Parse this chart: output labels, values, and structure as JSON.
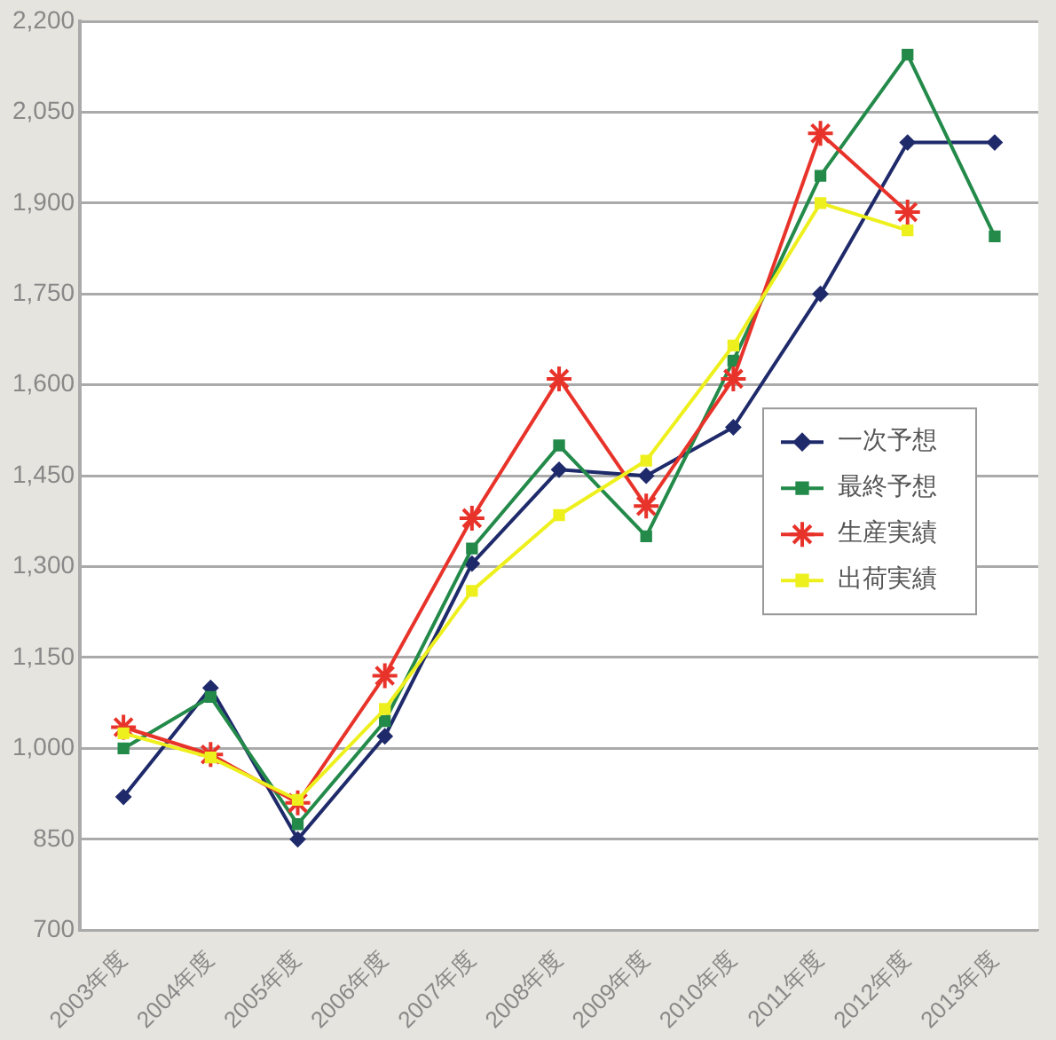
{
  "chart_data": {
    "type": "line",
    "categories": [
      "2003年度",
      "2004年度",
      "2005年度",
      "2006年度",
      "2007年度",
      "2008年度",
      "2009年度",
      "2010年度",
      "2011年度",
      "2012年度",
      "2013年度"
    ],
    "series": [
      {
        "name": "一次予想",
        "color": "#1f2a6b",
        "marker": "diamond",
        "values": [
          920,
          1100,
          850,
          1020,
          1305,
          1460,
          1450,
          1530,
          1750,
          2000,
          2000
        ]
      },
      {
        "name": "最終予想",
        "color": "#238a4a",
        "marker": "square",
        "values": [
          1000,
          1085,
          875,
          1045,
          1330,
          1500,
          1350,
          1640,
          1945,
          2145,
          1845
        ]
      },
      {
        "name": "生産実績",
        "color": "#e8332a",
        "marker": "cross",
        "values": [
          1035,
          990,
          910,
          1120,
          1380,
          1610,
          1400,
          1610,
          2015,
          1885,
          null
        ]
      },
      {
        "name": "出荷実績",
        "color": "#eef01e",
        "marker": "square",
        "values": [
          1025,
          985,
          915,
          1065,
          1260,
          1385,
          1475,
          1665,
          1900,
          1855,
          null
        ]
      }
    ],
    "ylim": [
      700,
      2200
    ],
    "yticks": [
      {
        "value": 700,
        "label": "700"
      },
      {
        "value": 850,
        "label": "850"
      },
      {
        "value": 1000,
        "label": "1,000"
      },
      {
        "value": 1150,
        "label": "1,150"
      },
      {
        "value": 1300,
        "label": "1,300"
      },
      {
        "value": 1450,
        "label": "1,450"
      },
      {
        "value": 1600,
        "label": "1,600"
      },
      {
        "value": 1750,
        "label": "1,750"
      },
      {
        "value": 1900,
        "label": "1,900"
      },
      {
        "value": 2050,
        "label": "2,050"
      },
      {
        "value": 2200,
        "label": "2,200"
      }
    ],
    "grid": "y",
    "legend": "right",
    "line_style": "solid"
  }
}
